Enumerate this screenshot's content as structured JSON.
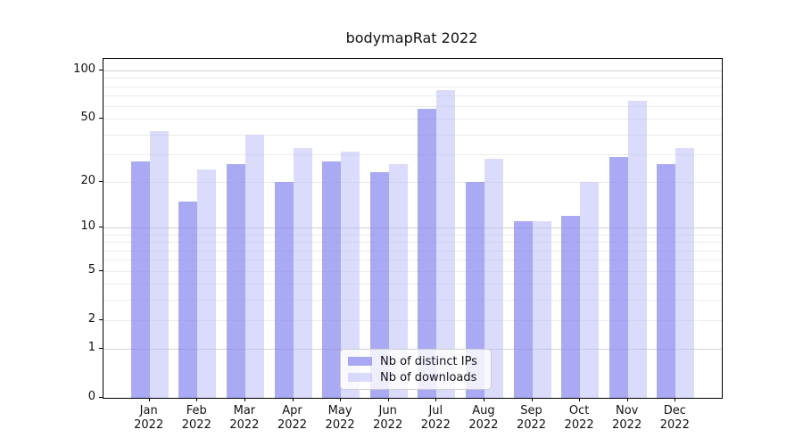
{
  "title": "bodymapRat 2022",
  "legend": {
    "items": [
      {
        "label": "Nb of distinct IPs",
        "color": "#a5a5f2"
      },
      {
        "label": "Nb of downloads",
        "color": "#dcdcf9"
      }
    ]
  },
  "colors": {
    "bar_distinct_ips": "#a9a9f5",
    "bar_downloads": "#dcdcf9",
    "grid_minor": "#ebebeb",
    "grid_major": "#d2d2d2",
    "axis": "#000000",
    "text": "#111111"
  },
  "chart_data": {
    "type": "bar",
    "title": "bodymapRat 2022",
    "categories": [
      "Jan",
      "Feb",
      "Mar",
      "Apr",
      "May",
      "Jun",
      "Jul",
      "Aug",
      "Sep",
      "Oct",
      "Nov",
      "Dec"
    ],
    "year": "2022",
    "series": [
      {
        "name": "Nb of distinct IPs",
        "values": [
          27,
          15,
          26,
          20,
          27,
          23,
          58,
          20,
          11,
          12,
          29,
          26
        ]
      },
      {
        "name": "Nb of downloads",
        "values": [
          42,
          24,
          40,
          33,
          31,
          26,
          76,
          28,
          11,
          20,
          65,
          33
        ]
      }
    ],
    "xlabel": "",
    "ylabel": "",
    "yscale": "log1p",
    "ylim": [
      0,
      118
    ],
    "y_ticks": [
      0,
      1,
      2,
      5,
      10,
      20,
      50,
      100
    ],
    "grid_minor_values": [
      2,
      3,
      4,
      5,
      6,
      7,
      8,
      9,
      20,
      30,
      40,
      50,
      60,
      70,
      80,
      90
    ],
    "grid_major_values": [
      1,
      10,
      100
    ],
    "grid": "on",
    "legend_position": "lower center"
  }
}
